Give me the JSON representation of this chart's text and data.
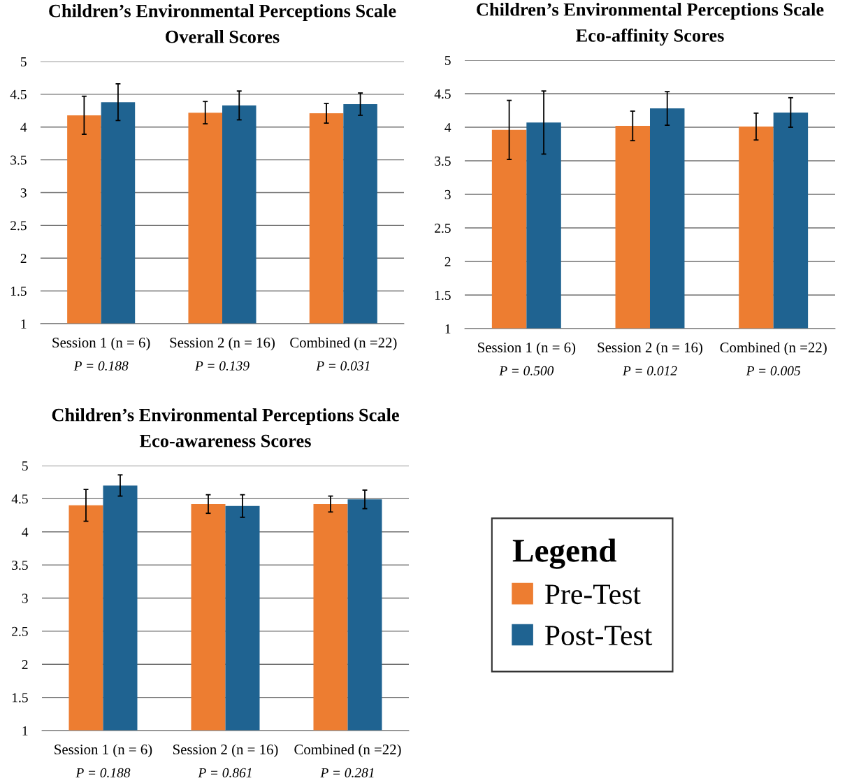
{
  "chart_data": [
    {
      "type": "bar",
      "title": "Children’s Environmental Perceptions Scale",
      "subtitle": "Overall Scores",
      "categories": [
        "Session 1 (n = 6)",
        "Session 2 (n = 16)",
        "Combined (n =22)"
      ],
      "series": [
        {
          "name": "Pre-Test",
          "color": "#ed7d31",
          "values": [
            4.18,
            4.22,
            4.21
          ],
          "errors": [
            0.29,
            0.17,
            0.15
          ]
        },
        {
          "name": "Post-Test",
          "color": "#1f6391",
          "values": [
            4.38,
            4.33,
            4.35
          ],
          "errors": [
            0.28,
            0.22,
            0.17
          ]
        }
      ],
      "ylim": [
        1,
        5
      ],
      "yticks": [
        1,
        1.5,
        2,
        2.5,
        3,
        3.5,
        4,
        4.5,
        5
      ],
      "grid": "y",
      "annotations": [
        "P = 0.188",
        "P = 0.139",
        "P = 0.031"
      ],
      "legend": "bottom right",
      "legend_title": "Legend"
    },
    {
      "type": "bar",
      "title": "Children’s Environmental Perceptions Scale",
      "subtitle": "Eco-affinity Scores",
      "categories": [
        "Session 1 (n = 6)",
        "Session 2 (n = 16)",
        "Combined (n =22)"
      ],
      "series": [
        {
          "color": "#ed7d31",
          "values": [
            3.96,
            4.02,
            4.01
          ],
          "errors": [
            0.44,
            0.22,
            0.2
          ]
        },
        {
          "color": "#1f6391",
          "values": [
            4.07,
            4.28,
            4.22
          ],
          "errors": [
            0.47,
            0.25,
            0.22
          ]
        }
      ],
      "ylim": [
        1,
        5
      ],
      "yticks": [
        1,
        1.5,
        2,
        2.5,
        3,
        3.5,
        4,
        4.5,
        5
      ],
      "grid": "y",
      "annotations": [
        "P = 0.500",
        "P = 0.012",
        "P = 0.005"
      ]
    },
    {
      "type": "bar",
      "title": "Children’s Environmental Perceptions Scale",
      "subtitle": "Eco-awareness Scores",
      "categories": [
        "Session 1 (n = 6)",
        "Session 2 (n = 16)",
        "Combined (n =22)"
      ],
      "series": [
        {
          "color": "#ed7d31",
          "values": [
            4.4,
            4.42,
            4.42
          ],
          "errors": [
            0.24,
            0.14,
            0.12
          ]
        },
        {
          "color": "#1f6391",
          "values": [
            4.7,
            4.39,
            4.49
          ],
          "errors": [
            0.16,
            0.17,
            0.14
          ]
        }
      ],
      "ylim": [
        1,
        5
      ],
      "yticks": [
        1,
        1.5,
        2,
        2.5,
        3,
        3.5,
        4,
        4.5,
        5
      ],
      "grid": "y",
      "annotations": [
        "P = 0.188",
        "P = 0.861",
        "P = 0.281"
      ]
    }
  ]
}
